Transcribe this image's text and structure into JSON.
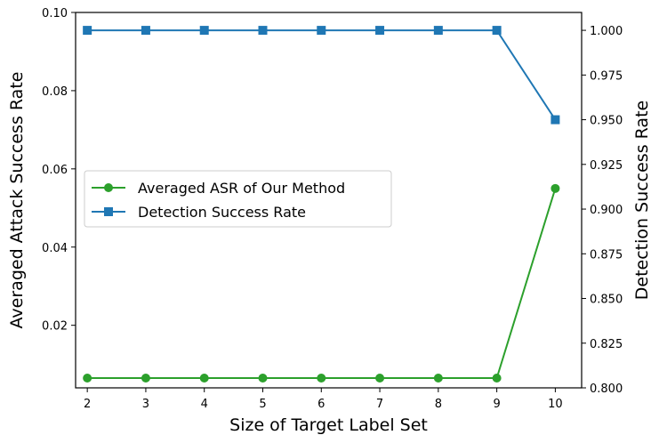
{
  "chart_data": {
    "type": "line",
    "x": [
      2,
      3,
      4,
      5,
      6,
      7,
      8,
      9,
      10
    ],
    "xlabel": "Size of Target Label Set",
    "x_ticks": [
      "2",
      "3",
      "4",
      "5",
      "6",
      "7",
      "8",
      "9",
      "10"
    ],
    "xlim": [
      1.8,
      10.45
    ],
    "left_axis": {
      "label": "Averaged Attack Success Rate",
      "ylim": [
        0.004,
        0.1
      ],
      "ticks": [
        "0.02",
        "0.04",
        "0.06",
        "0.08",
        "0.10"
      ],
      "tick_values": [
        0.02,
        0.04,
        0.06,
        0.08,
        0.1
      ]
    },
    "right_axis": {
      "label": "Detection Success Rate",
      "ylim": [
        0.8,
        1.01
      ],
      "ticks": [
        "0.800",
        "0.825",
        "0.850",
        "0.875",
        "0.900",
        "0.925",
        "0.950",
        "0.975",
        "1.000"
      ],
      "tick_values": [
        0.8,
        0.825,
        0.85,
        0.875,
        0.9,
        0.925,
        0.95,
        0.975,
        1.0
      ]
    },
    "series": [
      {
        "name": "Averaged ASR of Our Method",
        "axis": "left",
        "color": "#2ca02c",
        "marker": "circle",
        "values": [
          0.0065,
          0.0065,
          0.0065,
          0.0065,
          0.0065,
          0.0065,
          0.0065,
          0.0065,
          0.055
        ]
      },
      {
        "name": "Detection Success Rate",
        "axis": "right",
        "color": "#1f77b4",
        "marker": "square",
        "values": [
          1.0,
          1.0,
          1.0,
          1.0,
          1.0,
          1.0,
          1.0,
          1.0,
          0.95
        ]
      }
    ],
    "legend": {
      "placement": "center-left"
    },
    "grid": false
  }
}
